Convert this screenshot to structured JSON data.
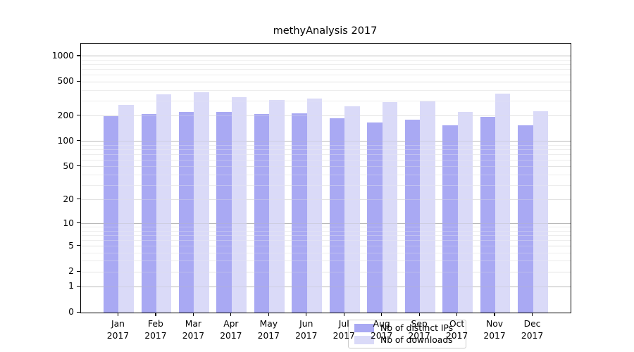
{
  "chart_data": {
    "type": "bar",
    "title": "methyAnalysis 2017",
    "categories": [
      "Jan",
      "Feb",
      "Mar",
      "Apr",
      "May",
      "Jun",
      "Jul",
      "Aug",
      "Sep",
      "Oct",
      "Nov",
      "Dec"
    ],
    "x_label_second_line": "2017",
    "series": [
      {
        "name": "Nb of distinct IPs",
        "color": "#a9a9f3",
        "values": [
          197,
          210,
          223,
          222,
          211,
          214,
          188,
          168,
          181,
          156,
          196,
          155
        ]
      },
      {
        "name": "Nb of downloads",
        "color": "#dadaf8",
        "values": [
          268,
          356,
          382,
          330,
          306,
          317,
          261,
          290,
          293,
          224,
          363,
          226
        ]
      }
    ],
    "yscale": "log10(value+1)",
    "ytick_labels": [
      "0",
      "1",
      "2",
      "5",
      "10",
      "20",
      "50",
      "100",
      "200",
      "500",
      "1000"
    ],
    "yticks": [
      0,
      1,
      2,
      5,
      10,
      20,
      50,
      100,
      200,
      500,
      1000
    ],
    "grid_major_values": [
      1,
      10,
      100,
      1000
    ],
    "grid_mid_values": [
      2,
      5,
      20,
      50,
      200,
      500
    ],
    "grid_minor_values": [
      3,
      4,
      6,
      7,
      8,
      9,
      30,
      40,
      60,
      70,
      80,
      90,
      300,
      400,
      600,
      700,
      800,
      900
    ],
    "ylim": [
      0,
      1405
    ],
    "grid": "horizontal",
    "legend_position": "lower center",
    "colors": {
      "bar_ips": "#a9a9f3",
      "bar_downloads": "#dadaf8",
      "grid_major": "#b9b9b9",
      "grid_minor": "#ededed",
      "axis": "#000000"
    }
  }
}
